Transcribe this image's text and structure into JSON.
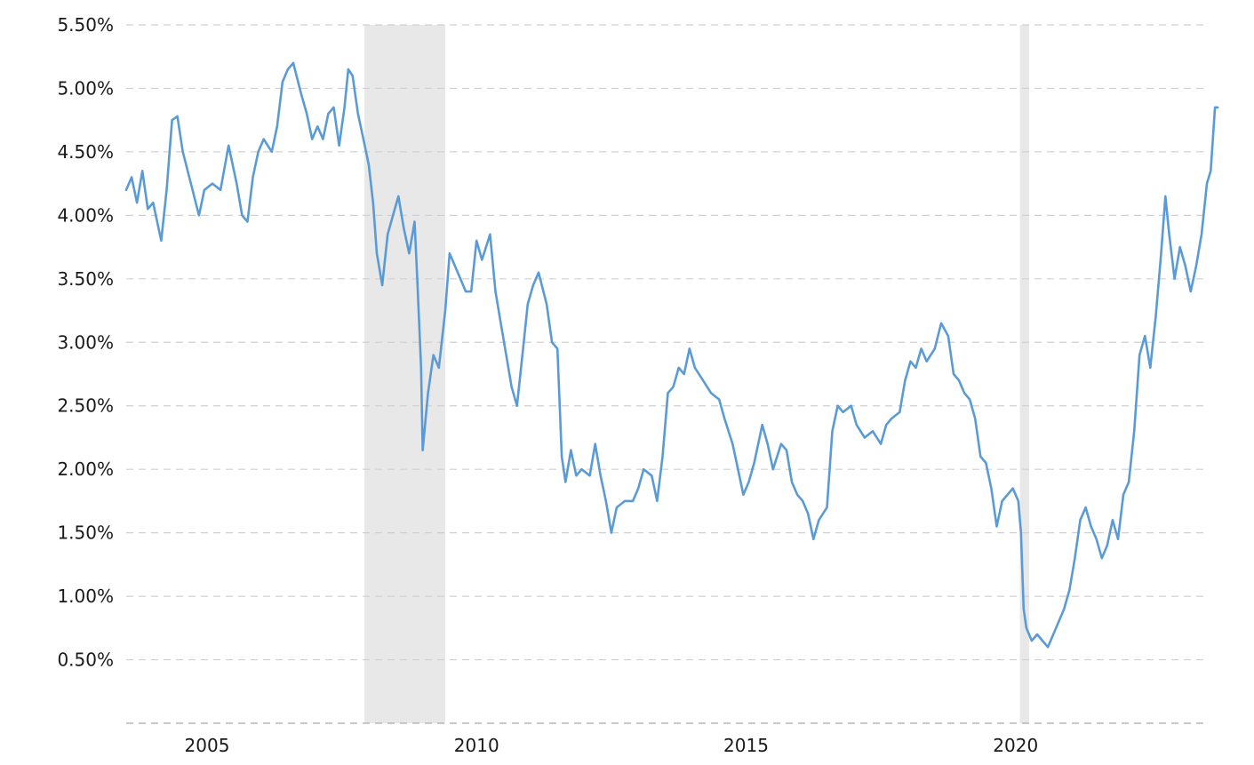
{
  "chart_data": {
    "type": "line",
    "title": "",
    "xlabel": "",
    "ylabel": "",
    "grid": true,
    "legend": "none",
    "x_range": [
      2003.5,
      2023.5
    ],
    "ylim": [
      0.0,
      5.5
    ],
    "x_ticks": [
      {
        "value": 2005,
        "label": "2005"
      },
      {
        "value": 2010,
        "label": "2010"
      },
      {
        "value": 2015,
        "label": "2015"
      },
      {
        "value": 2020,
        "label": "2020"
      }
    ],
    "y_ticks": [
      {
        "value": 0.5,
        "label": "0.50%"
      },
      {
        "value": 1.0,
        "label": "1.00%"
      },
      {
        "value": 1.5,
        "label": "1.50%"
      },
      {
        "value": 2.0,
        "label": "2.00%"
      },
      {
        "value": 2.5,
        "label": "2.50%"
      },
      {
        "value": 3.0,
        "label": "3.00%"
      },
      {
        "value": 3.5,
        "label": "3.50%"
      },
      {
        "value": 4.0,
        "label": "4.00%"
      },
      {
        "value": 4.5,
        "label": "4.50%"
      },
      {
        "value": 5.0,
        "label": "5.00%"
      },
      {
        "value": 5.5,
        "label": "5.50%"
      }
    ],
    "recessions": [
      {
        "start": 2007.92,
        "end": 2009.42
      },
      {
        "start": 2020.08,
        "end": 2020.25
      }
    ],
    "colors": {
      "line": "#5b9bd5",
      "recession": "#e8e8e8",
      "grid": "#d0d0d0",
      "baseline": "#aaaaaa"
    },
    "series": [
      {
        "points": [
          [
            2003.5,
            4.2
          ],
          [
            2003.6,
            4.3
          ],
          [
            2003.7,
            4.1
          ],
          [
            2003.8,
            4.35
          ],
          [
            2003.9,
            4.05
          ],
          [
            2004.0,
            4.1
          ],
          [
            2004.15,
            3.8
          ],
          [
            2004.25,
            4.2
          ],
          [
            2004.35,
            4.75
          ],
          [
            2004.45,
            4.78
          ],
          [
            2004.55,
            4.5
          ],
          [
            2004.7,
            4.25
          ],
          [
            2004.85,
            4.0
          ],
          [
            2004.95,
            4.2
          ],
          [
            2005.1,
            4.25
          ],
          [
            2005.25,
            4.2
          ],
          [
            2005.4,
            4.55
          ],
          [
            2005.55,
            4.25
          ],
          [
            2005.65,
            4.0
          ],
          [
            2005.75,
            3.95
          ],
          [
            2005.85,
            4.3
          ],
          [
            2005.95,
            4.5
          ],
          [
            2006.05,
            4.6
          ],
          [
            2006.2,
            4.5
          ],
          [
            2006.3,
            4.7
          ],
          [
            2006.4,
            5.05
          ],
          [
            2006.5,
            5.15
          ],
          [
            2006.6,
            5.2
          ],
          [
            2006.75,
            4.95
          ],
          [
            2006.85,
            4.8
          ],
          [
            2006.95,
            4.6
          ],
          [
            2007.05,
            4.7
          ],
          [
            2007.15,
            4.6
          ],
          [
            2007.25,
            4.8
          ],
          [
            2007.35,
            4.85
          ],
          [
            2007.45,
            4.55
          ],
          [
            2007.55,
            4.85
          ],
          [
            2007.62,
            5.15
          ],
          [
            2007.7,
            5.1
          ],
          [
            2007.8,
            4.8
          ],
          [
            2007.9,
            4.6
          ],
          [
            2008.0,
            4.4
          ],
          [
            2008.08,
            4.1
          ],
          [
            2008.15,
            3.7
          ],
          [
            2008.25,
            3.45
          ],
          [
            2008.35,
            3.85
          ],
          [
            2008.45,
            4.0
          ],
          [
            2008.55,
            4.15
          ],
          [
            2008.65,
            3.9
          ],
          [
            2008.75,
            3.7
          ],
          [
            2008.85,
            3.95
          ],
          [
            2008.9,
            3.5
          ],
          [
            2008.97,
            2.8
          ],
          [
            2009.0,
            2.15
          ],
          [
            2009.1,
            2.6
          ],
          [
            2009.2,
            2.9
          ],
          [
            2009.3,
            2.8
          ],
          [
            2009.42,
            3.25
          ],
          [
            2009.5,
            3.7
          ],
          [
            2009.6,
            3.6
          ],
          [
            2009.7,
            3.5
          ],
          [
            2009.8,
            3.4
          ],
          [
            2009.9,
            3.4
          ],
          [
            2010.0,
            3.8
          ],
          [
            2010.1,
            3.65
          ],
          [
            2010.25,
            3.85
          ],
          [
            2010.35,
            3.4
          ],
          [
            2010.45,
            3.15
          ],
          [
            2010.55,
            2.9
          ],
          [
            2010.65,
            2.65
          ],
          [
            2010.75,
            2.5
          ],
          [
            2010.85,
            2.9
          ],
          [
            2010.95,
            3.3
          ],
          [
            2011.05,
            3.45
          ],
          [
            2011.15,
            3.55
          ],
          [
            2011.3,
            3.3
          ],
          [
            2011.4,
            3.0
          ],
          [
            2011.5,
            2.95
          ],
          [
            2011.58,
            2.1
          ],
          [
            2011.65,
            1.9
          ],
          [
            2011.75,
            2.15
          ],
          [
            2011.85,
            1.95
          ],
          [
            2011.95,
            2.0
          ],
          [
            2012.1,
            1.95
          ],
          [
            2012.2,
            2.2
          ],
          [
            2012.3,
            1.95
          ],
          [
            2012.4,
            1.75
          ],
          [
            2012.5,
            1.5
          ],
          [
            2012.6,
            1.7
          ],
          [
            2012.75,
            1.75
          ],
          [
            2012.9,
            1.75
          ],
          [
            2013.0,
            1.85
          ],
          [
            2013.1,
            2.0
          ],
          [
            2013.25,
            1.95
          ],
          [
            2013.35,
            1.75
          ],
          [
            2013.45,
            2.1
          ],
          [
            2013.55,
            2.6
          ],
          [
            2013.65,
            2.65
          ],
          [
            2013.75,
            2.8
          ],
          [
            2013.85,
            2.75
          ],
          [
            2013.95,
            2.95
          ],
          [
            2014.05,
            2.8
          ],
          [
            2014.2,
            2.7
          ],
          [
            2014.35,
            2.6
          ],
          [
            2014.5,
            2.55
          ],
          [
            2014.6,
            2.4
          ],
          [
            2014.75,
            2.2
          ],
          [
            2014.85,
            2.0
          ],
          [
            2014.95,
            1.8
          ],
          [
            2015.05,
            1.9
          ],
          [
            2015.15,
            2.05
          ],
          [
            2015.3,
            2.35
          ],
          [
            2015.4,
            2.2
          ],
          [
            2015.5,
            2.0
          ],
          [
            2015.65,
            2.2
          ],
          [
            2015.75,
            2.15
          ],
          [
            2015.85,
            1.9
          ],
          [
            2015.95,
            1.8
          ],
          [
            2016.05,
            1.75
          ],
          [
            2016.15,
            1.65
          ],
          [
            2016.25,
            1.45
          ],
          [
            2016.35,
            1.6
          ],
          [
            2016.5,
            1.7
          ],
          [
            2016.6,
            2.3
          ],
          [
            2016.7,
            2.5
          ],
          [
            2016.8,
            2.45
          ],
          [
            2016.95,
            2.5
          ],
          [
            2017.05,
            2.35
          ],
          [
            2017.2,
            2.25
          ],
          [
            2017.35,
            2.3
          ],
          [
            2017.5,
            2.2
          ],
          [
            2017.6,
            2.35
          ],
          [
            2017.7,
            2.4
          ],
          [
            2017.85,
            2.45
          ],
          [
            2017.95,
            2.7
          ],
          [
            2018.05,
            2.85
          ],
          [
            2018.15,
            2.8
          ],
          [
            2018.25,
            2.95
          ],
          [
            2018.35,
            2.85
          ],
          [
            2018.5,
            2.95
          ],
          [
            2018.62,
            3.15
          ],
          [
            2018.75,
            3.05
          ],
          [
            2018.85,
            2.75
          ],
          [
            2018.95,
            2.7
          ],
          [
            2019.05,
            2.6
          ],
          [
            2019.15,
            2.55
          ],
          [
            2019.25,
            2.4
          ],
          [
            2019.35,
            2.1
          ],
          [
            2019.45,
            2.05
          ],
          [
            2019.55,
            1.85
          ],
          [
            2019.65,
            1.55
          ],
          [
            2019.75,
            1.75
          ],
          [
            2019.85,
            1.8
          ],
          [
            2019.95,
            1.85
          ],
          [
            2020.05,
            1.75
          ],
          [
            2020.1,
            1.5
          ],
          [
            2020.15,
            0.9
          ],
          [
            2020.2,
            0.75
          ],
          [
            2020.3,
            0.65
          ],
          [
            2020.4,
            0.7
          ],
          [
            2020.5,
            0.65
          ],
          [
            2020.6,
            0.6
          ],
          [
            2020.7,
            0.7
          ],
          [
            2020.8,
            0.8
          ],
          [
            2020.9,
            0.9
          ],
          [
            2021.0,
            1.05
          ],
          [
            2021.1,
            1.3
          ],
          [
            2021.2,
            1.6
          ],
          [
            2021.3,
            1.7
          ],
          [
            2021.4,
            1.55
          ],
          [
            2021.5,
            1.45
          ],
          [
            2021.6,
            1.3
          ],
          [
            2021.7,
            1.4
          ],
          [
            2021.8,
            1.6
          ],
          [
            2021.9,
            1.45
          ],
          [
            2022.0,
            1.8
          ],
          [
            2022.1,
            1.9
          ],
          [
            2022.2,
            2.3
          ],
          [
            2022.3,
            2.9
          ],
          [
            2022.4,
            3.05
          ],
          [
            2022.5,
            2.8
          ],
          [
            2022.6,
            3.2
          ],
          [
            2022.7,
            3.7
          ],
          [
            2022.78,
            4.15
          ],
          [
            2022.85,
            3.85
          ],
          [
            2022.95,
            3.5
          ],
          [
            2023.05,
            3.75
          ],
          [
            2023.15,
            3.6
          ],
          [
            2023.25,
            3.4
          ],
          [
            2023.35,
            3.6
          ],
          [
            2023.45,
            3.85
          ],
          [
            2023.55,
            4.25
          ],
          [
            2023.62,
            4.35
          ],
          [
            2023.7,
            4.85
          ],
          [
            2023.75,
            4.85
          ]
        ]
      }
    ]
  }
}
